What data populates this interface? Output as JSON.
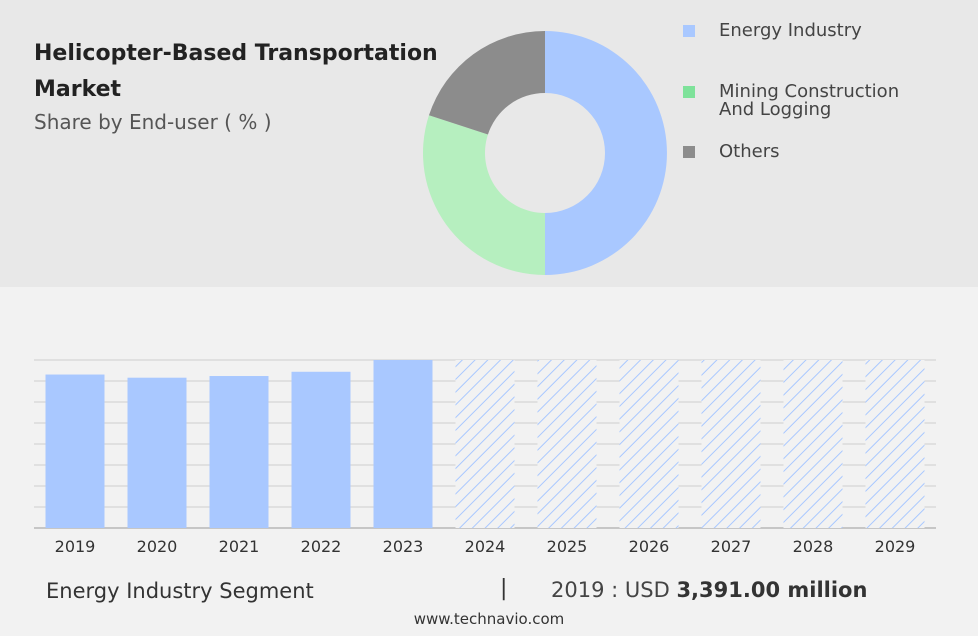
{
  "header": {
    "title": "Helicopter-Based Transportation Market",
    "subtitle": "Share by End-user ( % )"
  },
  "legend": {
    "items": [
      {
        "label": "Energy Industry",
        "color": "#a9c8ff"
      },
      {
        "label": "Mining Construction And Logging",
        "color": "#7ee29a"
      },
      {
        "label": "Others",
        "color": "#8c8c8c"
      }
    ]
  },
  "chart_data": [
    {
      "type": "pie",
      "variant": "donut",
      "title": "",
      "categories": [
        "Energy Industry",
        "Mining Construction And Logging",
        "Others"
      ],
      "values": [
        50,
        30,
        20
      ],
      "colors": [
        "#a9c8ff",
        "#b6efbf",
        "#8c8c8c"
      ]
    },
    {
      "type": "bar",
      "title": "",
      "categories": [
        "2019",
        "2020",
        "2021",
        "2022",
        "2023",
        "2024",
        "2025",
        "2026",
        "2027",
        "2028",
        "2029"
      ],
      "values": [
        3391,
        3321,
        3358,
        3452,
        3712,
        3712,
        3712,
        3712,
        3712,
        3712,
        3712
      ],
      "forecast_from": "2024",
      "color": "#a9c8ff",
      "ylim": [
        0,
        3712
      ],
      "grid": true
    }
  ],
  "footer": {
    "segment": "Energy Industry Segment",
    "separator": "|",
    "year_label": "2019 : USD",
    "value": "3,391.00 million",
    "source": "www.technavio.com"
  }
}
